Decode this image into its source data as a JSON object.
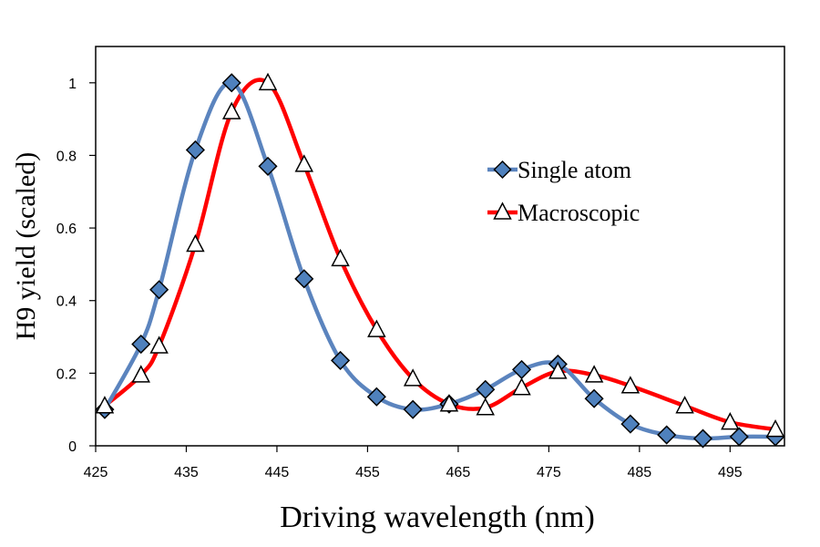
{
  "chart_data": {
    "type": "line",
    "title": "",
    "xlabel": "Driving wavelength (nm)",
    "ylabel": "H9 yield (scaled)",
    "xlim": [
      425,
      501
    ],
    "ylim": [
      0,
      1.1
    ],
    "xticks": [
      425,
      435,
      445,
      455,
      465,
      475,
      485,
      495
    ],
    "yticks": [
      0,
      0.2,
      0.4,
      0.6,
      0.8,
      1
    ],
    "ytick_labels": [
      "0",
      "0.2",
      "0.4",
      "0.6",
      "0.8",
      "1"
    ],
    "legend_position": "right",
    "series": [
      {
        "name": "Single atom",
        "color": "#5B84BE",
        "marker": "diamond",
        "marker_fill": "#4F81BD",
        "x": [
          426,
          430,
          432,
          436,
          440,
          444,
          448,
          452,
          456,
          460,
          464,
          468,
          472,
          476,
          480,
          484,
          488,
          492,
          496,
          500
        ],
        "y": [
          0.1,
          0.28,
          0.43,
          0.815,
          1.0,
          0.77,
          0.46,
          0.235,
          0.135,
          0.1,
          0.115,
          0.155,
          0.21,
          0.225,
          0.13,
          0.06,
          0.03,
          0.02,
          0.025,
          0.025
        ]
      },
      {
        "name": "Macroscopic",
        "color": "#FF0000",
        "marker": "triangle",
        "marker_fill": "#FFFFFF",
        "x": [
          426,
          430,
          432,
          436,
          440,
          444,
          448,
          452,
          456,
          460,
          464,
          468,
          472,
          476,
          480,
          484,
          490,
          495,
          500
        ],
        "y": [
          0.11,
          0.195,
          0.275,
          0.555,
          0.92,
          1.0,
          0.775,
          0.515,
          0.32,
          0.185,
          0.115,
          0.105,
          0.16,
          0.205,
          0.195,
          0.165,
          0.11,
          0.065,
          0.045
        ]
      }
    ]
  }
}
